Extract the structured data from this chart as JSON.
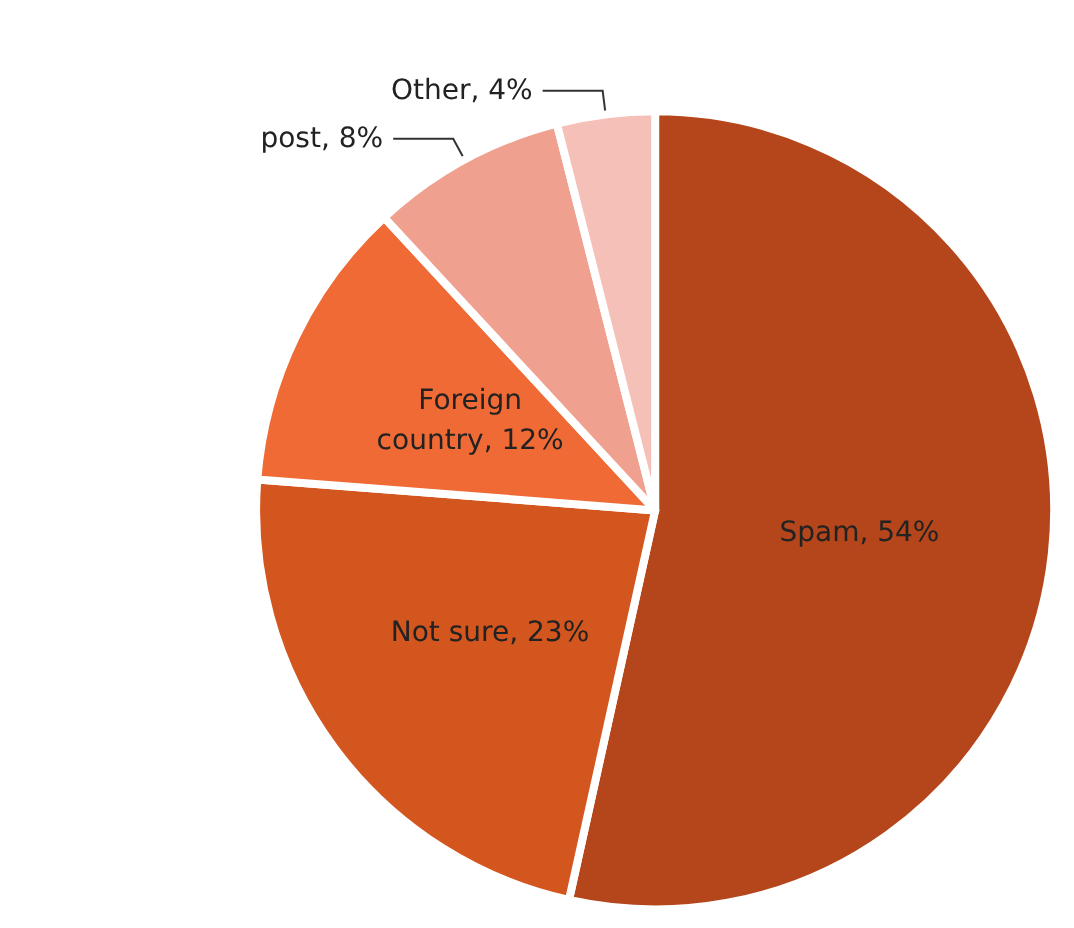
{
  "chart_data": {
    "type": "pie",
    "categories": [
      "Spam",
      "Not sure",
      "Foreign country",
      "post",
      "Other"
    ],
    "values": [
      54,
      23,
      12,
      8,
      4
    ],
    "colors": [
      "#b5461b",
      "#d4561f",
      "#ef6a35",
      "#f0a08e",
      "#f5c0b8"
    ],
    "value_labels": [
      "54%",
      "23%",
      "12%",
      "8%",
      "4%"
    ]
  }
}
